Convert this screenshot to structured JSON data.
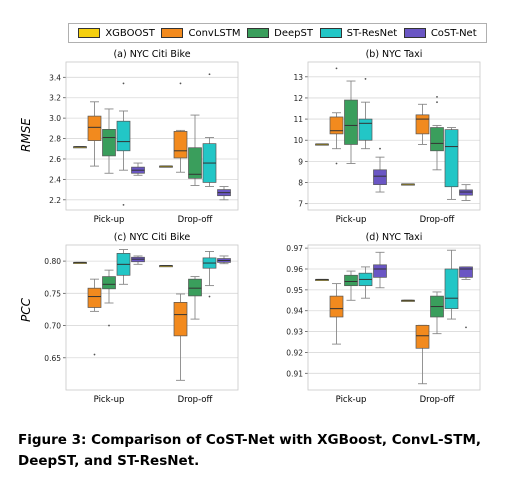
{
  "legend": [
    {
      "name": "XGBOOST",
      "color": "#f5d00f"
    },
    {
      "name": "ConvLSTM",
      "color": "#f28a1e"
    },
    {
      "name": "DeepST",
      "color": "#3a9e5c"
    },
    {
      "name": "ST-ResNet",
      "color": "#22c6c6"
    },
    {
      "name": "CoST-Net",
      "color": "#6a56c4"
    }
  ],
  "caption": "Figure 3: Comparison of CoST-Net with XGBoost, ConvL-STM, DeepST, and ST-ResNet.",
  "row_labels": {
    "rmse": "RMSE",
    "pcc": "PCC"
  },
  "chart_data": [
    {
      "type": "box",
      "title": "(a) NYC Citi Bike",
      "ylabel": "RMSE",
      "categories": [
        "Pick-up",
        "Drop-off"
      ],
      "ylim": [
        2.1,
        3.55
      ],
      "yticks": [
        2.2,
        2.4,
        2.6,
        2.8,
        3.0,
        3.2,
        3.4
      ],
      "ytick_labels": [
        "2.2",
        "2.4",
        "2.6",
        "2.8",
        "3.0",
        "3.2",
        "3.4"
      ],
      "series": [
        {
          "name": "XGBOOST",
          "boxes": [
            {
              "min": 2.72,
              "q1": 2.72,
              "median": 2.72,
              "q3": 2.72,
              "max": 2.72,
              "outliers": []
            },
            {
              "min": 2.53,
              "q1": 2.53,
              "median": 2.53,
              "q3": 2.53,
              "max": 2.53,
              "outliers": []
            }
          ]
        },
        {
          "name": "ConvLSTM",
          "boxes": [
            {
              "min": 2.53,
              "q1": 2.78,
              "median": 2.91,
              "q3": 3.02,
              "max": 3.16,
              "outliers": []
            },
            {
              "min": 2.47,
              "q1": 2.61,
              "median": 2.68,
              "q3": 2.87,
              "max": 2.88,
              "outliers": [
                3.34
              ]
            }
          ]
        },
        {
          "name": "DeepST",
          "boxes": [
            {
              "min": 2.46,
              "q1": 2.63,
              "median": 2.81,
              "q3": 2.89,
              "max": 3.09,
              "outliers": []
            },
            {
              "min": 2.34,
              "q1": 2.41,
              "median": 2.45,
              "q3": 2.71,
              "max": 3.03,
              "outliers": []
            }
          ]
        },
        {
          "name": "ST-ResNet",
          "boxes": [
            {
              "min": 2.49,
              "q1": 2.68,
              "median": 2.77,
              "q3": 2.97,
              "max": 3.07,
              "outliers": [
                3.34,
                2.15
              ]
            },
            {
              "min": 2.33,
              "q1": 2.37,
              "median": 2.56,
              "q3": 2.75,
              "max": 2.81,
              "outliers": [
                3.43
              ]
            }
          ]
        },
        {
          "name": "CoST-Net",
          "boxes": [
            {
              "min": 2.44,
              "q1": 2.46,
              "median": 2.49,
              "q3": 2.52,
              "max": 2.56,
              "outliers": []
            },
            {
              "min": 2.2,
              "q1": 2.24,
              "median": 2.27,
              "q3": 2.3,
              "max": 2.33,
              "outliers": []
            }
          ]
        }
      ]
    },
    {
      "type": "box",
      "title": "(b) NYC Taxi",
      "ylabel": "",
      "categories": [
        "Pick-up",
        "Drop-off"
      ],
      "ylim": [
        6.7,
        13.7
      ],
      "yticks": [
        7,
        8,
        9,
        10,
        11,
        12,
        13
      ],
      "ytick_labels": [
        "7",
        "8",
        "9",
        "10",
        "11",
        "12",
        "13"
      ],
      "series": [
        {
          "name": "XGBOOST",
          "boxes": [
            {
              "min": 9.82,
              "q1": 9.82,
              "median": 9.82,
              "q3": 9.82,
              "max": 9.82,
              "outliers": []
            },
            {
              "min": 7.93,
              "q1": 7.93,
              "median": 7.93,
              "q3": 7.93,
              "max": 7.93,
              "outliers": []
            }
          ]
        },
        {
          "name": "ConvLSTM",
          "boxes": [
            {
              "min": 9.6,
              "q1": 10.3,
              "median": 10.45,
              "q3": 11.1,
              "max": 11.3,
              "outliers": [
                13.4,
                8.9
              ]
            },
            {
              "min": 9.8,
              "q1": 10.3,
              "median": 11.0,
              "q3": 11.2,
              "max": 11.7,
              "outliers": []
            }
          ]
        },
        {
          "name": "DeepST",
          "boxes": [
            {
              "min": 8.9,
              "q1": 9.8,
              "median": 10.7,
              "q3": 11.9,
              "max": 12.8,
              "outliers": []
            },
            {
              "min": 8.6,
              "q1": 9.5,
              "median": 9.85,
              "q3": 10.6,
              "max": 10.7,
              "outliers": [
                11.8,
                12.05
              ]
            }
          ]
        },
        {
          "name": "ST-ResNet",
          "boxes": [
            {
              "min": 9.6,
              "q1": 10.0,
              "median": 10.8,
              "q3": 11.0,
              "max": 11.8,
              "outliers": [
                12.9
              ]
            },
            {
              "min": 7.2,
              "q1": 7.8,
              "median": 9.7,
              "q3": 10.5,
              "max": 10.6,
              "outliers": []
            }
          ]
        },
        {
          "name": "CoST-Net",
          "boxes": [
            {
              "min": 7.55,
              "q1": 7.9,
              "median": 8.3,
              "q3": 8.6,
              "max": 9.2,
              "outliers": [
                9.6
              ]
            },
            {
              "min": 7.15,
              "q1": 7.4,
              "median": 7.55,
              "q3": 7.65,
              "max": 7.9,
              "outliers": []
            }
          ]
        }
      ]
    },
    {
      "type": "box",
      "title": "(c) NYC Citi Bike",
      "ylabel": "PCC",
      "categories": [
        "Pick-up",
        "Drop-off"
      ],
      "ylim": [
        0.6,
        0.825
      ],
      "yticks": [
        0.65,
        0.7,
        0.75,
        0.8
      ],
      "ytick_labels": [
        "0.65",
        "0.70",
        "0.75",
        "0.80"
      ],
      "series": [
        {
          "name": "XGBOOST",
          "boxes": [
            {
              "min": 0.798,
              "q1": 0.798,
              "median": 0.798,
              "q3": 0.798,
              "max": 0.798,
              "outliers": []
            },
            {
              "min": 0.793,
              "q1": 0.793,
              "median": 0.793,
              "q3": 0.793,
              "max": 0.793,
              "outliers": []
            }
          ]
        },
        {
          "name": "ConvLSTM",
          "boxes": [
            {
              "min": 0.722,
              "q1": 0.728,
              "median": 0.745,
              "q3": 0.758,
              "max": 0.772,
              "outliers": [
                0.655
              ]
            },
            {
              "min": 0.615,
              "q1": 0.684,
              "median": 0.717,
              "q3": 0.736,
              "max": 0.749,
              "outliers": []
            }
          ]
        },
        {
          "name": "DeepST",
          "boxes": [
            {
              "min": 0.735,
              "q1": 0.757,
              "median": 0.764,
              "q3": 0.776,
              "max": 0.786,
              "outliers": [
                0.7
              ]
            },
            {
              "min": 0.71,
              "q1": 0.746,
              "median": 0.758,
              "q3": 0.772,
              "max": 0.776,
              "outliers": []
            }
          ]
        },
        {
          "name": "ST-ResNet",
          "boxes": [
            {
              "min": 0.764,
              "q1": 0.778,
              "median": 0.795,
              "q3": 0.812,
              "max": 0.818,
              "outliers": []
            },
            {
              "min": 0.762,
              "q1": 0.789,
              "median": 0.797,
              "q3": 0.805,
              "max": 0.815,
              "outliers": [
                0.745
              ]
            }
          ]
        },
        {
          "name": "CoST-Net",
          "boxes": [
            {
              "min": 0.795,
              "q1": 0.799,
              "median": 0.803,
              "q3": 0.806,
              "max": 0.808,
              "outliers": []
            },
            {
              "min": 0.796,
              "q1": 0.798,
              "median": 0.801,
              "q3": 0.804,
              "max": 0.808,
              "outliers": []
            }
          ]
        }
      ]
    },
    {
      "type": "box",
      "title": "(d) NYC Taxi",
      "ylabel": "",
      "categories": [
        "Pick-up",
        "Drop-off"
      ],
      "ylim": [
        0.902,
        0.9715
      ],
      "yticks": [
        0.91,
        0.92,
        0.93,
        0.94,
        0.95,
        0.96,
        0.97
      ],
      "ytick_labels": [
        "0.91",
        "0.92",
        "0.93",
        "0.94",
        "0.95",
        "0.96",
        "0.97"
      ],
      "series": [
        {
          "name": "XGBOOST",
          "boxes": [
            {
              "min": 0.955,
              "q1": 0.955,
              "median": 0.955,
              "q3": 0.955,
              "max": 0.955,
              "outliers": []
            },
            {
              "min": 0.945,
              "q1": 0.945,
              "median": 0.945,
              "q3": 0.945,
              "max": 0.945,
              "outliers": []
            }
          ]
        },
        {
          "name": "ConvLSTM",
          "boxes": [
            {
              "min": 0.924,
              "q1": 0.937,
              "median": 0.941,
              "q3": 0.947,
              "max": 0.953,
              "outliers": []
            },
            {
              "min": 0.905,
              "q1": 0.922,
              "median": 0.928,
              "q3": 0.933,
              "max": 0.933,
              "outliers": []
            }
          ]
        },
        {
          "name": "DeepST",
          "boxes": [
            {
              "min": 0.945,
              "q1": 0.952,
              "median": 0.954,
              "q3": 0.957,
              "max": 0.959,
              "outliers": []
            },
            {
              "min": 0.929,
              "q1": 0.937,
              "median": 0.942,
              "q3": 0.947,
              "max": 0.949,
              "outliers": []
            }
          ]
        },
        {
          "name": "ST-ResNet",
          "boxes": [
            {
              "min": 0.946,
              "q1": 0.952,
              "median": 0.955,
              "q3": 0.958,
              "max": 0.961,
              "outliers": []
            },
            {
              "min": 0.936,
              "q1": 0.941,
              "median": 0.946,
              "q3": 0.96,
              "max": 0.969,
              "outliers": []
            }
          ]
        },
        {
          "name": "CoST-Net",
          "boxes": [
            {
              "min": 0.951,
              "q1": 0.956,
              "median": 0.96,
              "q3": 0.962,
              "max": 0.968,
              "outliers": []
            },
            {
              "min": 0.955,
              "q1": 0.956,
              "median": 0.96,
              "q3": 0.961,
              "max": 0.961,
              "outliers": [
                0.932
              ]
            }
          ]
        }
      ]
    }
  ]
}
